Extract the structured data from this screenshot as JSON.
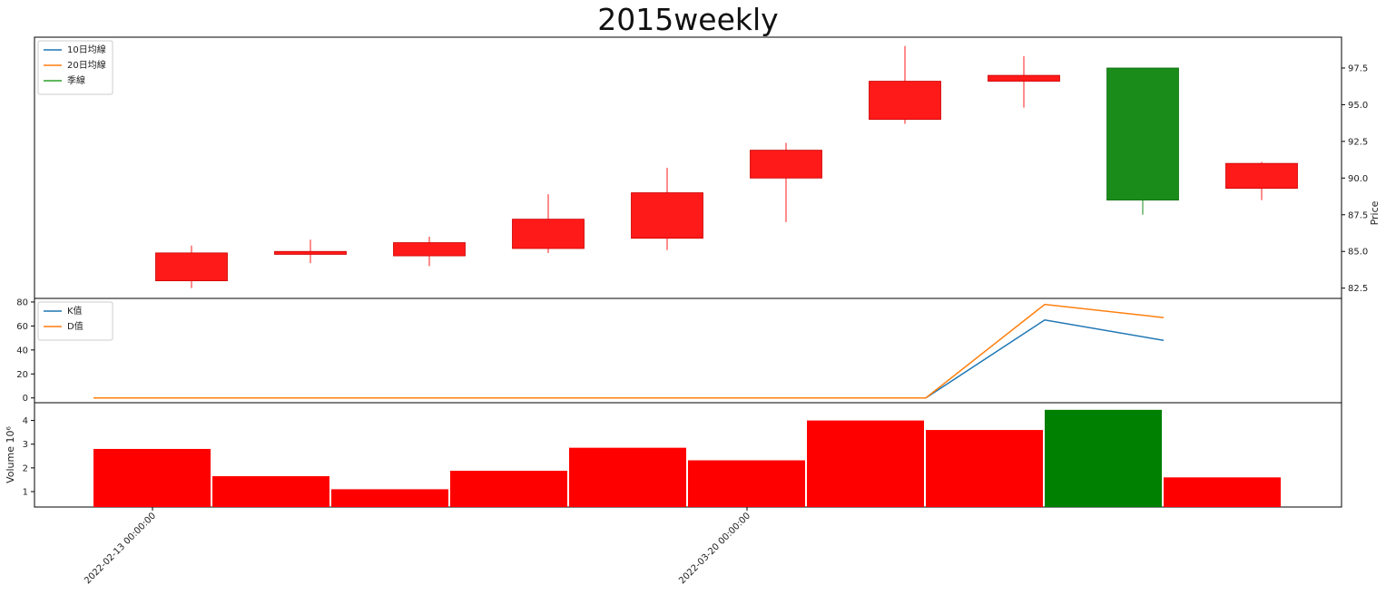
{
  "chart_data": {
    "type": "candlestick",
    "title": "2015weekly",
    "colors": {
      "up": "#ff1a1a",
      "down": "#1a8c1a",
      "volume_up": "#ff0000",
      "volume_down": "#008000",
      "ma10": "#1f77b4",
      "ma20": "#ff7f0e",
      "season": "#2ca02c",
      "k": "#1f77b4",
      "d": "#ff7f0e"
    },
    "price_panel": {
      "ylabel": "Price",
      "ylim": [
        81.8,
        99.6
      ],
      "yticks": [
        82.5,
        85.0,
        87.5,
        90.0,
        92.5,
        95.0,
        97.5
      ],
      "ytick_labels": [
        "82.5",
        "85.0",
        "87.5",
        "90.0",
        "92.5",
        "95.0",
        "97.5"
      ],
      "legend": [
        "10日均線",
        "20日均線",
        "季線"
      ],
      "legend_position": "upper-left",
      "candles": [
        {
          "open": 83.0,
          "high": 85.4,
          "low": 82.5,
          "close": 84.9
        },
        {
          "open": 84.8,
          "high": 85.8,
          "low": 84.2,
          "close": 85.0
        },
        {
          "open": 84.7,
          "high": 86.0,
          "low": 84.0,
          "close": 85.6
        },
        {
          "open": 85.2,
          "high": 88.9,
          "low": 84.9,
          "close": 87.2
        },
        {
          "open": 85.9,
          "high": 90.7,
          "low": 85.1,
          "close": 89.0
        },
        {
          "open": 90.0,
          "high": 92.4,
          "low": 87.0,
          "close": 91.9
        },
        {
          "open": 94.0,
          "high": 99.0,
          "low": 93.7,
          "close": 96.6
        },
        {
          "open": 96.6,
          "high": 98.3,
          "low": 94.8,
          "close": 97.0
        },
        {
          "open": 97.5,
          "high": 97.5,
          "low": 87.5,
          "close": 88.5
        },
        {
          "open": 89.3,
          "high": 91.1,
          "low": 88.5,
          "close": 91.0
        }
      ]
    },
    "kd_panel": {
      "ylim": [
        -4,
        83
      ],
      "yticks": [
        0,
        20,
        40,
        60,
        80
      ],
      "ytick_labels": [
        "0",
        "20",
        "40",
        "60",
        "80"
      ],
      "legend": [
        "K值",
        "D值"
      ],
      "legend_position": "upper-left",
      "series": [
        {
          "name": "K值",
          "values": [
            0,
            0,
            0,
            0,
            0,
            0,
            0,
            0,
            65,
            48
          ]
        },
        {
          "name": "D值",
          "values": [
            0,
            0,
            0,
            0,
            0,
            0,
            0,
            0,
            78,
            67
          ]
        }
      ]
    },
    "volume_panel": {
      "ylabel": "Volume  10⁶",
      "ylim": [
        0.35,
        4.75
      ],
      "yticks": [
        1,
        2,
        3,
        4
      ],
      "ytick_labels": [
        "1",
        "2",
        "3",
        "4"
      ],
      "values": [
        2.8,
        1.65,
        1.1,
        1.88,
        2.85,
        2.32,
        4.0,
        3.6,
        4.45,
        1.6
      ],
      "directions": [
        "up",
        "up",
        "up",
        "up",
        "up",
        "up",
        "up",
        "up",
        "down",
        "up"
      ]
    },
    "x_ticks": [
      {
        "index": 0,
        "label": "2022-02-13 00:00:00"
      },
      {
        "index": 5,
        "label": "2022-03-20 00:00:00"
      }
    ],
    "grid": false
  }
}
